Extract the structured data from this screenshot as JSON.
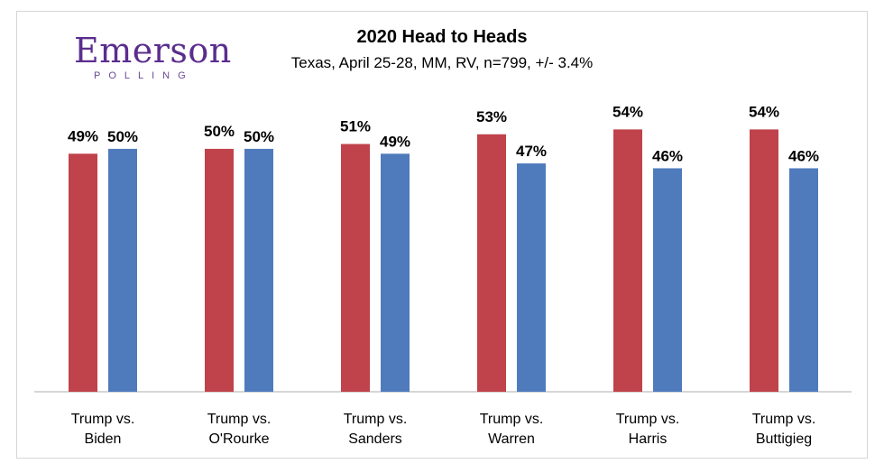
{
  "logo": {
    "name": "Emerson",
    "sub": "POLLING"
  },
  "chart_data": {
    "type": "bar",
    "title": "2020 Head to Heads",
    "subtitle": "Texas, April 25-28, MM, RV, n=799,  +/- 3.4%",
    "categories": [
      [
        "Trump vs.",
        "Biden"
      ],
      [
        "Trump vs.",
        "O'Rourke"
      ],
      [
        "Trump vs.",
        "Sanders"
      ],
      [
        "Trump vs.",
        "Warren"
      ],
      [
        "Trump vs.",
        "Harris"
      ],
      [
        "Trump vs.",
        "Buttigieg"
      ]
    ],
    "series": [
      {
        "values": [
          49,
          50,
          51,
          53,
          54,
          54
        ],
        "color": "#c0424a"
      },
      {
        "values": [
          50,
          50,
          49,
          47,
          46,
          46
        ],
        "color": "#4f7bbd"
      }
    ],
    "ylim": [
      0,
      55
    ],
    "grid": false,
    "legend": "none"
  }
}
